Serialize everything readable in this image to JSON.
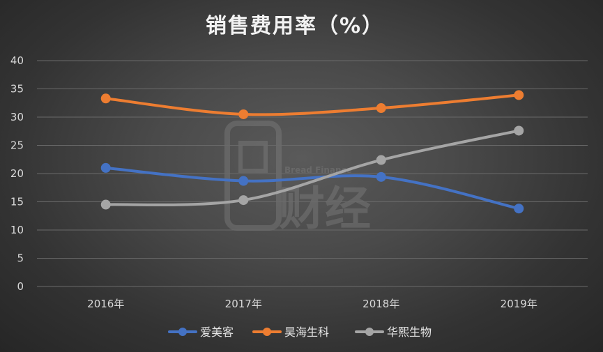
{
  "chart_data": {
    "type": "line",
    "title": "销售费用率（%）",
    "categories": [
      "2016年",
      "2017年",
      "2018年",
      "2019年"
    ],
    "series": [
      {
        "name": "爱美客",
        "color": "#4472c4",
        "values": [
          21.0,
          18.7,
          19.4,
          13.8
        ]
      },
      {
        "name": "昊海生科",
        "color": "#ed7d31",
        "values": [
          33.3,
          30.5,
          31.6,
          33.9
        ]
      },
      {
        "name": "华熙生物",
        "color": "#a5a5a5",
        "values": [
          14.5,
          15.3,
          22.4,
          27.6
        ]
      }
    ],
    "ylim": [
      0,
      40
    ],
    "yticks": [
      0,
      5,
      10,
      15,
      20,
      25,
      30,
      35,
      40
    ],
    "grid": true,
    "legend_position": "bottom",
    "smooth": true
  },
  "watermark": {
    "main_text": "财经",
    "sub_text": "Bread Finance"
  }
}
